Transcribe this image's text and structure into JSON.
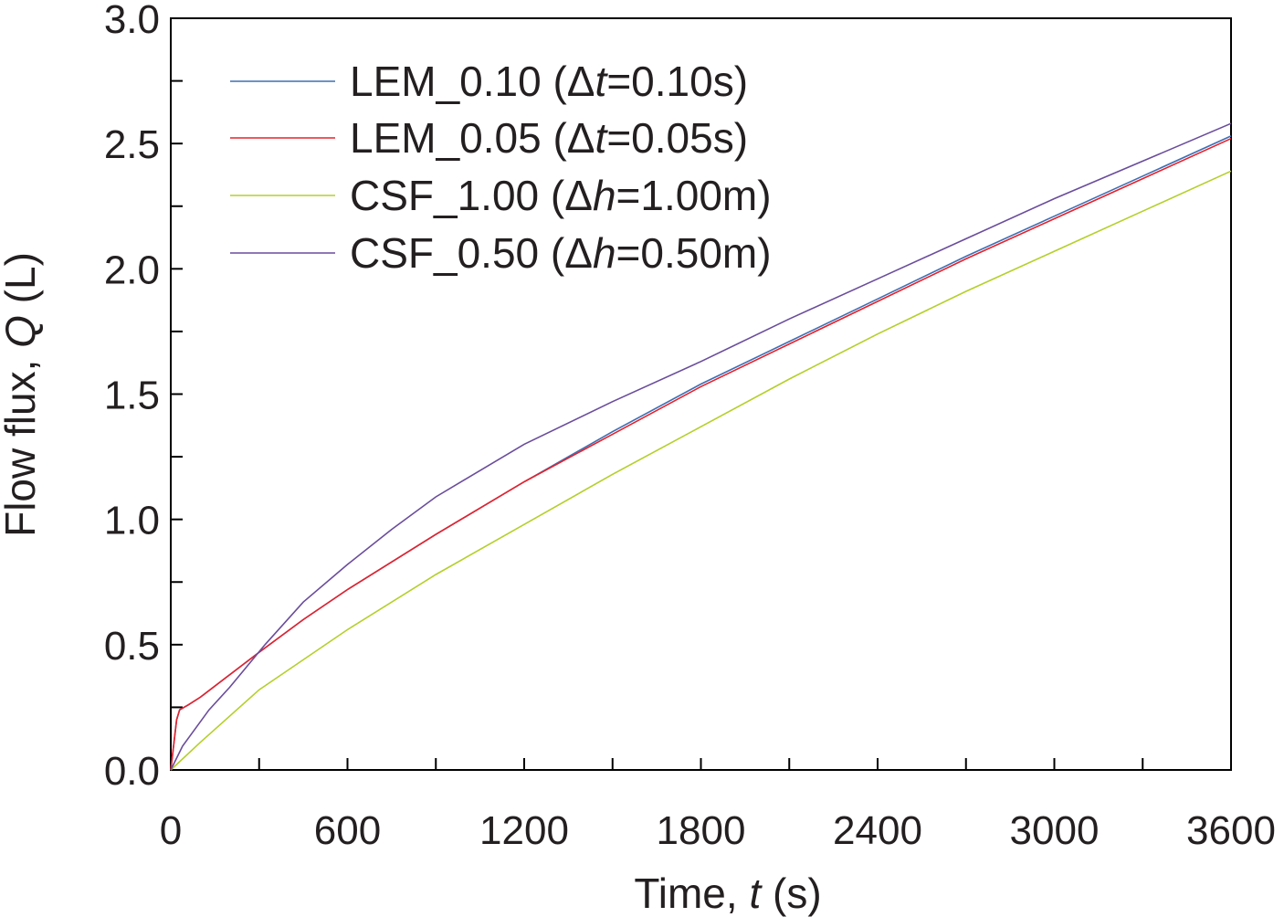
{
  "chart_data": {
    "type": "line",
    "xlabel": "Time, t (s)",
    "xlabel_parts": [
      "Time, ",
      "t",
      " (s)"
    ],
    "ylabel": "Flow flux, Q (L)",
    "ylabel_parts": [
      "Flow flux, ",
      "Q",
      " (L)"
    ],
    "xlim": [
      0,
      3600
    ],
    "ylim": [
      0,
      3.0
    ],
    "xticks": [
      0,
      600,
      1200,
      1800,
      2400,
      3000,
      3600
    ],
    "xtick_labels": [
      "0",
      "600",
      "1200",
      "1800",
      "2400",
      "3000",
      "3600"
    ],
    "yticks": [
      0,
      0.5,
      1.0,
      1.5,
      2.0,
      2.5,
      3.0
    ],
    "ytick_labels": [
      "0.0",
      "0.5",
      "1.0",
      "1.5",
      "2.0",
      "2.5",
      "3.0"
    ],
    "grid": false,
    "legend_placement": "top-left",
    "series": [
      {
        "name": "LEM_0.10 (Δt=0.10s)",
        "legend_parts": [
          "LEM_0.10 (Δ",
          "t",
          "=0.10s)"
        ],
        "color": "#3d6fb4",
        "x": [
          0,
          10,
          20,
          30,
          60,
          100,
          200,
          300,
          450,
          600,
          900,
          1200,
          1500,
          1800,
          2100,
          2400,
          2700,
          3000,
          3300,
          3600
        ],
        "y": [
          0,
          0.1,
          0.2,
          0.24,
          0.26,
          0.29,
          0.38,
          0.47,
          0.6,
          0.72,
          0.94,
          1.15,
          1.35,
          1.54,
          1.71,
          1.88,
          2.05,
          2.21,
          2.37,
          2.53
        ]
      },
      {
        "name": "LEM_0.05 (Δt=0.05s)",
        "legend_parts": [
          "LEM_0.05 (Δ",
          "t",
          "=0.05s)"
        ],
        "color": "#e8202a",
        "x": [
          0,
          10,
          20,
          30,
          60,
          100,
          200,
          300,
          450,
          600,
          900,
          1200,
          1500,
          1800,
          2100,
          2400,
          2700,
          3000,
          3300,
          3600
        ],
        "y": [
          0,
          0.1,
          0.2,
          0.24,
          0.26,
          0.29,
          0.38,
          0.47,
          0.6,
          0.72,
          0.94,
          1.15,
          1.34,
          1.53,
          1.7,
          1.87,
          2.04,
          2.2,
          2.36,
          2.52
        ]
      },
      {
        "name": "CSF_1.00 (Δh=1.00m)",
        "legend_parts": [
          "CSF_1.00 (Δ",
          "h",
          "=1.00m)"
        ],
        "color": "#b5cf2a",
        "x": [
          0,
          100,
          300,
          600,
          900,
          1200,
          1500,
          1800,
          2100,
          2400,
          2700,
          3000,
          3300,
          3600
        ],
        "y": [
          0,
          0.11,
          0.32,
          0.56,
          0.78,
          0.98,
          1.18,
          1.37,
          1.56,
          1.74,
          1.91,
          2.07,
          2.23,
          2.39
        ]
      },
      {
        "name": "CSF_0.50 (Δh=0.50m)",
        "legend_parts": [
          "CSF_0.50 (Δ",
          "h",
          "=0.50m)"
        ],
        "color": "#6a4c9c",
        "x": [
          0,
          40,
          130,
          200,
          320,
          450,
          600,
          750,
          900,
          1200,
          1500,
          1800,
          2100,
          2400,
          2700,
          3000,
          3300,
          3600
        ],
        "y": [
          0,
          0.095,
          0.24,
          0.33,
          0.5,
          0.67,
          0.82,
          0.96,
          1.09,
          1.3,
          1.47,
          1.63,
          1.8,
          1.96,
          2.12,
          2.28,
          2.43,
          2.58
        ]
      }
    ]
  }
}
